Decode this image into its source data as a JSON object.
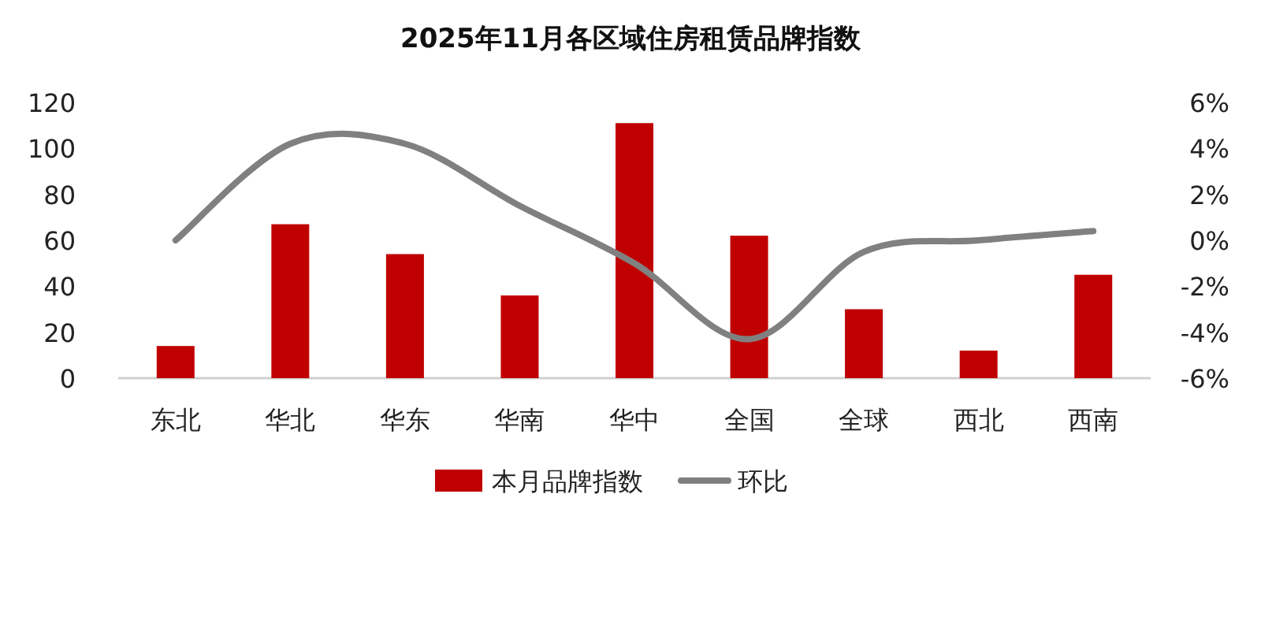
{
  "chart_data": {
    "type": "bar",
    "title": "2025年11月各区域住房租赁品牌指数",
    "categories": [
      "东北",
      "华北",
      "华东",
      "华南",
      "华中",
      "全国",
      "全球",
      "西北",
      "西南"
    ],
    "series": [
      {
        "name": "本月品牌指数",
        "color": "#c00000",
        "values": [
          14,
          67,
          54,
          36,
          111,
          62,
          30,
          12,
          45
        ]
      },
      {
        "name": "环比",
        "type": "line",
        "axis": "y2",
        "color": "#808080",
        "values": [
          0.0,
          4.2,
          4.2,
          1.5,
          -1.0,
          -4.3,
          -0.5,
          0.0,
          0.4
        ]
      }
    ],
    "ylim": [
      0,
      120
    ],
    "yticks": [
      0,
      20,
      40,
      60,
      80,
      100,
      120
    ],
    "y2lim": [
      -6,
      6
    ],
    "y2ticks": [
      {
        "value": -6,
        "label": "-6%"
      },
      {
        "value": -4,
        "label": "-4%"
      },
      {
        "value": -2,
        "label": "-2%"
      },
      {
        "value": 0,
        "label": "0%"
      },
      {
        "value": 2,
        "label": "2%"
      },
      {
        "value": 4,
        "label": "4%"
      },
      {
        "value": 6,
        "label": "6%"
      }
    ],
    "legend": "bottom"
  }
}
